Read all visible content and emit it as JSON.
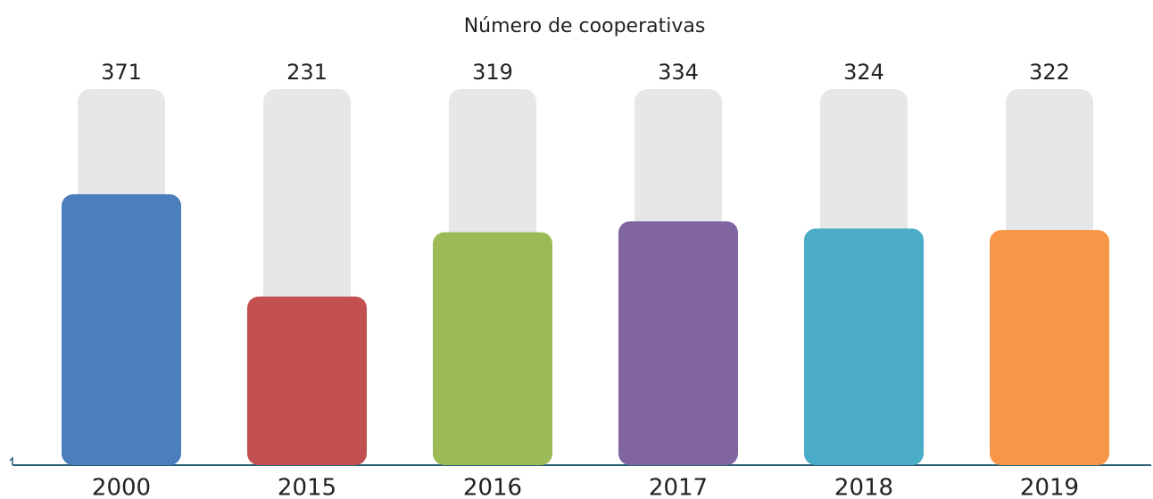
{
  "chart_data": {
    "type": "bar",
    "title": "Número de cooperativas",
    "categories": [
      "2000",
      "2015",
      "2016",
      "2017",
      "2018",
      "2019"
    ],
    "values": [
      371,
      231,
      319,
      334,
      324,
      322
    ],
    "colors": [
      "#4c7ebd",
      "#c25050",
      "#9cbb56",
      "#8065a1",
      "#4aacc6",
      "#f79646"
    ],
    "ylim": [
      0,
      515
    ]
  }
}
